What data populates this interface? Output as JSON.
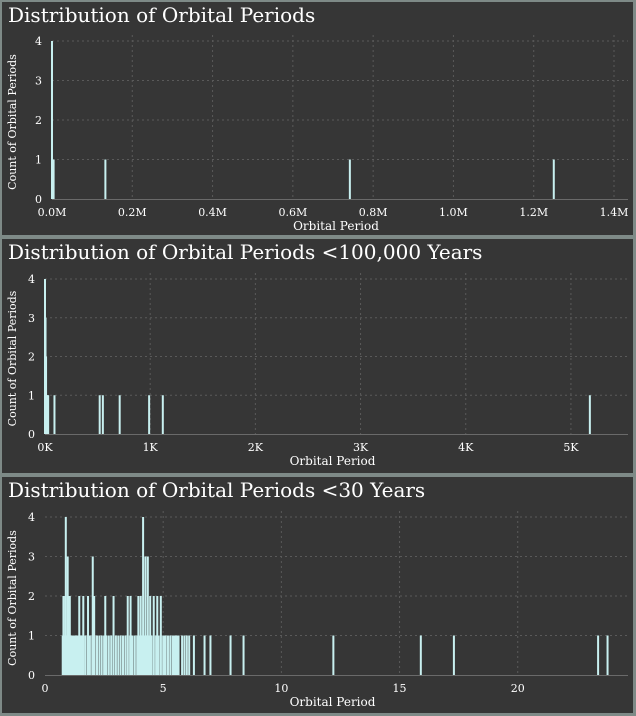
{
  "chart_data": [
    {
      "type": "bar",
      "title": "Distribution of Orbital Periods",
      "xlabel": "Orbital Period",
      "ylabel": "Count of Orbital Periods",
      "xlim": [
        0,
        1400000
      ],
      "ylim": [
        0,
        4
      ],
      "x_tick_values": [
        0,
        200000,
        400000,
        600000,
        800000,
        1000000,
        1200000,
        1400000
      ],
      "x_tick_labels": [
        "0.0M",
        "0.2M",
        "0.4M",
        "0.6M",
        "0.8M",
        "1.0M",
        "1.2M",
        "1.4M"
      ],
      "y_ticks": [
        0,
        1,
        2,
        3,
        4
      ],
      "grid": true,
      "color": "#c8f0f0",
      "bars": [
        {
          "x": 0,
          "y": 4
        },
        {
          "x": 2000,
          "y": 1
        },
        {
          "x": 4000,
          "y": 1
        },
        {
          "x": 133000,
          "y": 1
        },
        {
          "x": 742000,
          "y": 1
        },
        {
          "x": 1250000,
          "y": 1
        }
      ]
    },
    {
      "type": "bar",
      "title": "Distribution of Orbital Periods <100,000 Years",
      "xlabel": "Orbital Period",
      "ylabel": "Count of Orbital Periods",
      "xlim": [
        0,
        5400
      ],
      "ylim": [
        0,
        4
      ],
      "x_tick_values": [
        0,
        1000,
        2000,
        3000,
        4000,
        5000
      ],
      "x_tick_labels": [
        "0K",
        "1K",
        "2K",
        "3K",
        "4K",
        "5K"
      ],
      "y_ticks": [
        0,
        1,
        2,
        3,
        4
      ],
      "grid": true,
      "color": "#c8f0f0",
      "bars": [
        {
          "x": 0,
          "y": 4
        },
        {
          "x": 5,
          "y": 3
        },
        {
          "x": 10,
          "y": 2
        },
        {
          "x": 15,
          "y": 1
        },
        {
          "x": 20,
          "y": 1
        },
        {
          "x": 25,
          "y": 1
        },
        {
          "x": 30,
          "y": 1
        },
        {
          "x": 90,
          "y": 1
        },
        {
          "x": 520,
          "y": 1
        },
        {
          "x": 550,
          "y": 1
        },
        {
          "x": 710,
          "y": 1
        },
        {
          "x": 990,
          "y": 1
        },
        {
          "x": 1120,
          "y": 1
        },
        {
          "x": 5180,
          "y": 1
        }
      ]
    },
    {
      "type": "bar",
      "title": "Distribution of Orbital Periods <30 Years",
      "xlabel": "Orbital Period",
      "ylabel": "Count of Orbital Periods",
      "xlim": [
        0,
        24.2
      ],
      "ylim": [
        0,
        4
      ],
      "x_tick_values": [
        0,
        5,
        10,
        15,
        20
      ],
      "x_tick_labels": [
        "0",
        "5",
        "10",
        "15",
        "20"
      ],
      "y_ticks": [
        0,
        1,
        2,
        3,
        4
      ],
      "grid": true,
      "color": "#c8f0f0",
      "bars": [
        {
          "x": 0.75,
          "y": 1
        },
        {
          "x": 0.8,
          "y": 2
        },
        {
          "x": 0.85,
          "y": 1
        },
        {
          "x": 0.9,
          "y": 1
        },
        {
          "x": 0.95,
          "y": 1
        },
        {
          "x": 1.0,
          "y": 2
        },
        {
          "x": 1.05,
          "y": 1
        },
        {
          "x": 1.1,
          "y": 1
        },
        {
          "x": 1.15,
          "y": 1
        },
        {
          "x": 1.2,
          "y": 1
        },
        {
          "x": 1.25,
          "y": 1
        },
        {
          "x": 1.3,
          "y": 1
        },
        {
          "x": 1.35,
          "y": 1
        },
        {
          "x": 1.4,
          "y": 1
        },
        {
          "x": 1.5,
          "y": 1
        },
        {
          "x": 1.55,
          "y": 1
        },
        {
          "x": 1.6,
          "y": 1
        },
        {
          "x": 1.7,
          "y": 1
        },
        {
          "x": 1.8,
          "y": 1
        },
        {
          "x": 1.9,
          "y": 1
        },
        {
          "x": 2.0,
          "y": 1
        },
        {
          "x": 2.1,
          "y": 1
        },
        {
          "x": 2.2,
          "y": 1
        },
        {
          "x": 2.3,
          "y": 1
        },
        {
          "x": 2.4,
          "y": 1
        },
        {
          "x": 2.5,
          "y": 1
        },
        {
          "x": 2.6,
          "y": 1
        },
        {
          "x": 2.7,
          "y": 1
        },
        {
          "x": 2.8,
          "y": 1
        },
        {
          "x": 2.9,
          "y": 1
        },
        {
          "x": 3.0,
          "y": 1
        },
        {
          "x": 3.1,
          "y": 1
        },
        {
          "x": 3.2,
          "y": 1
        },
        {
          "x": 3.3,
          "y": 1
        },
        {
          "x": 3.4,
          "y": 1
        },
        {
          "x": 3.5,
          "y": 1
        },
        {
          "x": 3.6,
          "y": 1
        },
        {
          "x": 3.7,
          "y": 1
        },
        {
          "x": 3.8,
          "y": 1
        },
        {
          "x": 3.9,
          "y": 1
        },
        {
          "x": 4.0,
          "y": 1
        },
        {
          "x": 4.1,
          "y": 1
        },
        {
          "x": 4.2,
          "y": 1
        },
        {
          "x": 4.3,
          "y": 1
        },
        {
          "x": 4.4,
          "y": 1
        },
        {
          "x": 4.5,
          "y": 1
        },
        {
          "x": 4.6,
          "y": 1
        },
        {
          "x": 4.7,
          "y": 1
        },
        {
          "x": 4.8,
          "y": 1
        },
        {
          "x": 4.9,
          "y": 1
        },
        {
          "x": 5.0,
          "y": 1
        },
        {
          "x": 5.1,
          "y": 1
        },
        {
          "x": 5.2,
          "y": 1
        },
        {
          "x": 5.3,
          "y": 1
        },
        {
          "x": 5.4,
          "y": 1
        },
        {
          "x": 0.78,
          "y": 2
        },
        {
          "x": 0.88,
          "y": 4
        },
        {
          "x": 0.96,
          "y": 3
        },
        {
          "x": 1.05,
          "y": 2
        },
        {
          "x": 1.45,
          "y": 2
        },
        {
          "x": 1.62,
          "y": 2
        },
        {
          "x": 1.82,
          "y": 2
        },
        {
          "x": 2.02,
          "y": 3
        },
        {
          "x": 2.08,
          "y": 2
        },
        {
          "x": 2.55,
          "y": 2
        },
        {
          "x": 2.9,
          "y": 2
        },
        {
          "x": 3.5,
          "y": 2
        },
        {
          "x": 3.62,
          "y": 2
        },
        {
          "x": 3.95,
          "y": 2
        },
        {
          "x": 4.05,
          "y": 2
        },
        {
          "x": 4.15,
          "y": 4
        },
        {
          "x": 4.25,
          "y": 3
        },
        {
          "x": 4.35,
          "y": 3
        },
        {
          "x": 4.45,
          "y": 2
        },
        {
          "x": 4.6,
          "y": 2
        },
        {
          "x": 4.75,
          "y": 2
        },
        {
          "x": 4.9,
          "y": 2
        },
        {
          "x": 5.05,
          "y": 1
        },
        {
          "x": 5.2,
          "y": 1
        },
        {
          "x": 5.45,
          "y": 1
        },
        {
          "x": 5.5,
          "y": 1
        },
        {
          "x": 5.55,
          "y": 1
        },
        {
          "x": 5.6,
          "y": 1
        },
        {
          "x": 5.65,
          "y": 1
        },
        {
          "x": 5.8,
          "y": 1
        },
        {
          "x": 5.9,
          "y": 1
        },
        {
          "x": 6.0,
          "y": 1
        },
        {
          "x": 6.1,
          "y": 1
        },
        {
          "x": 6.3,
          "y": 1
        },
        {
          "x": 6.75,
          "y": 1
        },
        {
          "x": 7.0,
          "y": 1
        },
        {
          "x": 7.85,
          "y": 1
        },
        {
          "x": 8.4,
          "y": 1
        },
        {
          "x": 12.2,
          "y": 1
        },
        {
          "x": 15.9,
          "y": 1
        },
        {
          "x": 17.3,
          "y": 1
        },
        {
          "x": 23.4,
          "y": 1
        },
        {
          "x": 23.8,
          "y": 1
        }
      ]
    }
  ]
}
